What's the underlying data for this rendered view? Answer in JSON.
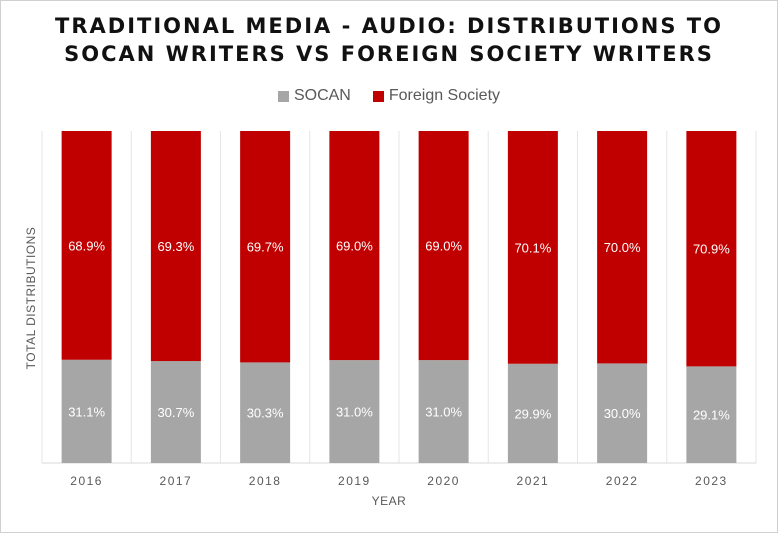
{
  "chart_data": {
    "type": "bar",
    "stacked": true,
    "title_lines": [
      "TRADITIONAL MEDIA - AUDIO: DISTRIBUTIONS TO",
      "SOCAN WRITERS VS FOREIGN SOCIETY WRITERS"
    ],
    "xlabel": "YEAR",
    "ylabel": "TOTAL DISTRIBUTIONS",
    "legend_position": "top",
    "ylim": [
      0,
      100
    ],
    "categories": [
      "2016",
      "2017",
      "2018",
      "2019",
      "2020",
      "2021",
      "2022",
      "2023"
    ],
    "series": [
      {
        "name": "SOCAN",
        "color": "#a6a6a6",
        "values": [
          31.1,
          30.7,
          30.3,
          31.0,
          31.0,
          29.9,
          30.0,
          29.1
        ],
        "labels": [
          "31.1%",
          "30.7%",
          "30.3%",
          "31.0%",
          "31.0%",
          "29.9%",
          "30.0%",
          "29.1%"
        ]
      },
      {
        "name": "Foreign Society",
        "color": "#c00000",
        "values": [
          68.9,
          69.3,
          69.7,
          69.0,
          69.0,
          70.1,
          70.0,
          70.9
        ],
        "labels": [
          "68.9%",
          "69.3%",
          "69.7%",
          "69.0%",
          "69.0%",
          "70.1%",
          "70.0%",
          "70.9%"
        ]
      }
    ]
  }
}
